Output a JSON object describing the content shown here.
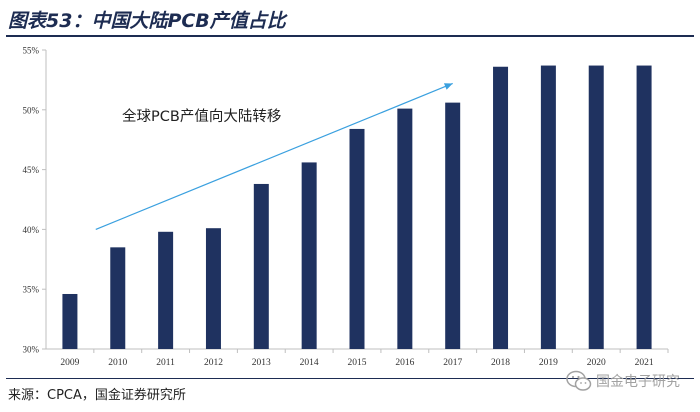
{
  "title": "图表53：中国大陆PCB产值占比",
  "source": "来源：CPCA，国金证券研究所",
  "watermark": "国金电子研究",
  "colors": {
    "bar": "#1f3260",
    "arrow": "#3aa0df",
    "title": "#1d2c52",
    "gridline": "#d9d9d9"
  },
  "chart_data": {
    "type": "bar",
    "title": "",
    "xlabel": "",
    "ylabel": "",
    "categories": [
      "2009",
      "2010",
      "2011",
      "2012",
      "2013",
      "2014",
      "2015",
      "2016",
      "2017",
      "2018",
      "2019",
      "2020",
      "2021"
    ],
    "values": [
      34.6,
      38.5,
      39.8,
      40.1,
      43.8,
      45.6,
      48.4,
      50.1,
      50.6,
      53.6,
      53.7,
      53.7,
      53.7
    ],
    "unit": "%",
    "ylim": [
      30,
      55
    ],
    "yticks": [
      "30%",
      "35%",
      "40%",
      "45%",
      "50%",
      "55%"
    ],
    "grid": false,
    "annotation": {
      "text": "全球PCB产值向大陆转移",
      "arrow_from": [
        "2010",
        40.0
      ],
      "arrow_to": [
        "2017",
        52.2
      ]
    }
  }
}
